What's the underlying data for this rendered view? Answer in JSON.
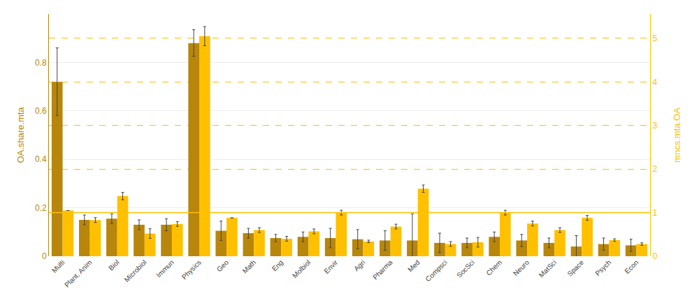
{
  "chart_data": {
    "type": "bar",
    "categories": [
      "Multi",
      "Plant, Anim",
      "Biol",
      "Microbiol",
      "Immun",
      "Physics",
      "Geo",
      "Math",
      "Eng",
      "Molbiol",
      "Envir",
      "Agri",
      "Pharma",
      "Med",
      "Compsci",
      "SocSci",
      "Chem",
      "Neuro",
      "MatSci",
      "Space",
      "Psych",
      "Econ"
    ],
    "series": [
      {
        "color": "#B8860B",
        "axis": "y",
        "values": [
          0.72,
          0.15,
          0.155,
          0.13,
          0.13,
          0.88,
          0.105,
          0.095,
          0.075,
          0.08,
          0.075,
          0.07,
          0.065,
          0.065,
          0.055,
          0.055,
          0.08,
          0.065,
          0.055,
          0.04,
          0.05,
          0.045
        ],
        "errors": [
          0.14,
          0.02,
          0.02,
          0.02,
          0.025,
          0.055,
          0.04,
          0.02,
          0.015,
          0.02,
          0.04,
          0.04,
          0.04,
          0.11,
          0.04,
          0.02,
          0.02,
          0.025,
          0.02,
          0.045,
          0.025,
          0.025
        ]
      },
      {
        "color": "#FFC000",
        "axis": "y2",
        "values": [
          1.05,
          0.83,
          1.38,
          0.52,
          0.74,
          5.05,
          0.88,
          0.6,
          0.4,
          0.57,
          1.0,
          0.34,
          0.68,
          1.55,
          0.28,
          0.32,
          1.0,
          0.75,
          0.6,
          0.88,
          0.37,
          0.28
        ],
        "errors": [
          0.0,
          0.055,
          0.085,
          0.11,
          0.055,
          0.22,
          0.0,
          0.055,
          0.055,
          0.055,
          0.055,
          0.028,
          0.055,
          0.085,
          0.055,
          0.11,
          0.055,
          0.055,
          0.055,
          0.055,
          0.028,
          0.028
        ]
      }
    ],
    "ylabel": "OA.share.mta",
    "y2label": "mncs.mta.OA",
    "ylim": [
      0,
      1.0
    ],
    "yticks": [
      0,
      0.2,
      0.4,
      0.6,
      0.8
    ],
    "y2lim": [
      0,
      5.56
    ],
    "y2ticks": [
      0,
      1,
      2,
      3,
      4,
      5
    ],
    "hline": {
      "value": 1.0,
      "axis": "y2",
      "color": "#FFC000"
    },
    "grid": true
  }
}
